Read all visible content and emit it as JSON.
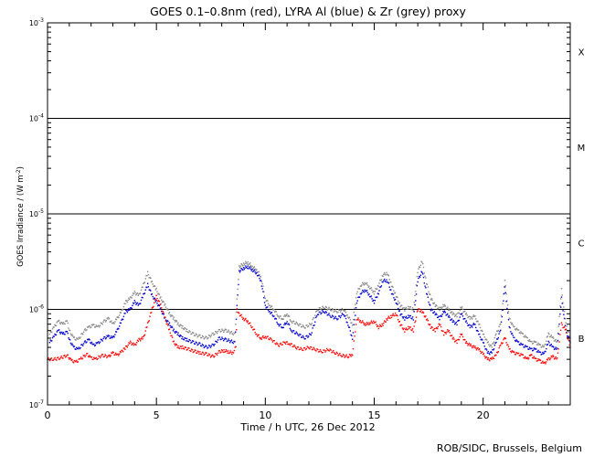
{
  "chart_data": {
    "type": "scatter",
    "title": "GOES 0.1–0.8nm (red), LYRA Al (blue) & Zr (grey) proxy",
    "xlabel": "Time / h UTC, 26 Dec 2012",
    "ylabel_main": "GOES Irradiance / (W m",
    "ylabel_exp": "-2",
    "ylabel_end": ")",
    "y_scale": "log",
    "xlim": [
      0,
      24
    ],
    "ylim": [
      1e-07,
      0.001
    ],
    "x_ticks": [
      0,
      5,
      10,
      15,
      20
    ],
    "x_tick_labels": [
      "0",
      "5",
      "10",
      "15",
      "20"
    ],
    "y_ticks": [
      1e-07,
      1e-06,
      1e-05,
      0.0001,
      0.001
    ],
    "y_tick_labels": [
      {
        "base": "10",
        "exp": "-7"
      },
      {
        "base": "10",
        "exp": "-6"
      },
      {
        "base": "10",
        "exp": "-5"
      },
      {
        "base": "10",
        "exp": "-4"
      },
      {
        "base": "10",
        "exp": "-3"
      }
    ],
    "threshold_lines": [
      1e-06,
      1e-05,
      0.0001
    ],
    "flare_classes": [
      {
        "label": "X",
        "y": 0.0005
      },
      {
        "label": "M",
        "y": 5e-05
      },
      {
        "label": "C",
        "y": 5e-06
      },
      {
        "label": "B",
        "y": 5e-07
      }
    ],
    "series": [
      {
        "name": "GOES 0.1–0.8nm",
        "color": "#ff0000",
        "x": [
          0,
          0.3,
          0.6,
          0.9,
          1.1,
          1.3,
          1.5,
          1.8,
          2.0,
          2.2,
          2.5,
          2.8,
          3.0,
          3.2,
          3.4,
          3.5,
          3.6,
          3.8,
          4.0,
          4.2,
          4.4,
          4.6,
          4.8,
          5.0,
          5.2,
          5.4,
          5.6,
          5.8,
          6.0,
          6.2,
          6.5,
          6.8,
          7.0,
          7.3,
          7.6,
          7.9,
          8.1,
          8.3,
          8.5,
          8.65,
          8.7,
          8.8,
          9.0,
          9.2,
          9.4,
          9.6,
          9.8,
          10.0,
          10.3,
          10.6,
          10.9,
          11.1,
          11.4,
          11.7,
          12.0,
          12.3,
          12.6,
          12.9,
          13.2,
          13.5,
          13.8,
          14.0,
          14.2,
          14.4,
          14.6,
          14.8,
          15.0,
          15.2,
          15.4,
          15.6,
          15.8,
          16.0,
          16.2,
          16.4,
          16.6,
          16.8,
          17.0,
          17.2,
          17.4,
          17.6,
          17.8,
          18.0,
          18.2,
          18.4,
          18.6,
          18.8,
          19.0,
          19.2,
          19.4,
          19.6,
          19.8,
          20.0,
          20.2,
          20.4,
          20.6,
          20.8,
          21.0,
          21.2,
          21.4,
          21.6,
          21.8,
          22.0,
          22.2,
          22.4,
          22.6,
          22.8,
          23.0,
          23.2,
          23.4,
          23.6,
          23.8,
          24.0
        ],
        "y": [
          3e-07,
          3e-07,
          3.1e-07,
          3.3e-07,
          2.9e-07,
          2.8e-07,
          3e-07,
          3.4e-07,
          3.1e-07,
          3e-07,
          3.3e-07,
          3.2e-07,
          3.5e-07,
          3.3e-07,
          3.6e-07,
          3.8e-07,
          4e-07,
          4.5e-07,
          4.2e-07,
          4.8e-07,
          5e-07,
          7e-07,
          1e-06,
          1.35e-06,
          1.1e-06,
          8e-07,
          6e-07,
          4.5e-07,
          4e-07,
          4e-07,
          3.8e-07,
          3.6e-07,
          3.5e-07,
          3.4e-07,
          3.2e-07,
          3.6e-07,
          3.7e-07,
          3.6e-07,
          3.5e-07,
          4e-07,
          1e-06,
          9e-07,
          8e-07,
          7.5e-07,
          6.5e-07,
          5.5e-07,
          5e-07,
          5.2e-07,
          4.8e-07,
          4.2e-07,
          4.5e-07,
          4.4e-07,
          4e-07,
          3.8e-07,
          4e-07,
          3.8e-07,
          3.6e-07,
          3.8e-07,
          3.5e-07,
          3.3e-07,
          3.2e-07,
          3.4e-07,
          8e-07,
          7.5e-07,
          7e-07,
          7.2e-07,
          7.5e-07,
          6.5e-07,
          7e-07,
          8e-07,
          8.5e-07,
          9e-07,
          7e-07,
          6e-07,
          6.5e-07,
          6e-07,
          1e-06,
          9.5e-07,
          8e-07,
          6.5e-07,
          6e-07,
          7e-07,
          5.5e-07,
          6e-07,
          5e-07,
          4.5e-07,
          5.5e-07,
          4.5e-07,
          4.2e-07,
          4e-07,
          3.8e-07,
          3.4e-07,
          3e-07,
          3e-07,
          3.3e-07,
          4.2e-07,
          5e-07,
          3.8e-07,
          3.5e-07,
          3.4e-07,
          3.3e-07,
          3e-07,
          3.3e-07,
          3e-07,
          2.9e-07,
          2.7e-07,
          3e-07,
          3.2e-07,
          3e-07,
          7e-07,
          6e-07,
          4e-07
        ]
      },
      {
        "name": "LYRA Al",
        "color": "#0000cc",
        "x": [
          0.1,
          0.3,
          0.5,
          0.7,
          0.9,
          1.0,
          1.2,
          1.4,
          1.7,
          1.9,
          2.1,
          2.3,
          2.6,
          2.8,
          3.0,
          3.2,
          3.4,
          3.6,
          3.8,
          4.0,
          4.2,
          4.4,
          4.6,
          4.8,
          5.0,
          5.2,
          5.4,
          5.6,
          5.8,
          6.0,
          6.2,
          6.4,
          6.7,
          7.0,
          7.3,
          7.6,
          7.9,
          8.2,
          8.6,
          8.8,
          9.0,
          9.2,
          9.4,
          9.6,
          9.8,
          10.0,
          10.2,
          10.4,
          10.6,
          10.8,
          11.0,
          11.2,
          11.5,
          11.8,
          12.1,
          12.4,
          12.7,
          13.0,
          13.3,
          13.6,
          13.8,
          14.0,
          14.2,
          14.4,
          14.6,
          14.8,
          15.0,
          15.2,
          15.4,
          15.6,
          15.8,
          16.0,
          16.2,
          16.4,
          16.6,
          16.8,
          17.0,
          17.2,
          17.4,
          17.6,
          17.8,
          18.0,
          18.2,
          18.4,
          18.6,
          18.8,
          19.0,
          19.2,
          19.4,
          19.6,
          19.8,
          20.0,
          20.2,
          20.4,
          20.6,
          20.8,
          21.0,
          21.2,
          21.4,
          21.6,
          21.8,
          22.0,
          22.2,
          22.4,
          22.6,
          22.8,
          23.0,
          23.2,
          23.4,
          23.6,
          23.8,
          24.0
        ],
        "y": [
          4.5e-07,
          5.2e-07,
          6e-07,
          5.5e-07,
          5.8e-07,
          4.8e-07,
          4e-07,
          3.8e-07,
          4.5e-07,
          4.8e-07,
          4.2e-07,
          4.4e-07,
          5e-07,
          5.2e-07,
          5e-07,
          6e-07,
          7.5e-07,
          9.5e-07,
          1e-06,
          1.2e-06,
          1.1e-06,
          1.4e-06,
          1.8e-06,
          1.4e-06,
          1.2e-06,
          1e-06,
          8e-07,
          7e-07,
          6e-07,
          5.5e-07,
          5e-07,
          4.8e-07,
          4.5e-07,
          4.3e-07,
          4e-07,
          4.2e-07,
          5e-07,
          4.8e-07,
          4.5e-07,
          2.5e-06,
          2.7e-06,
          2.8e-06,
          2.6e-06,
          2.4e-06,
          2e-06,
          1.1e-06,
          9.5e-07,
          8.5e-07,
          7e-07,
          6.5e-07,
          7.5e-07,
          6e-07,
          5.5e-07,
          5e-07,
          5.5e-07,
          9e-07,
          9.5e-07,
          8.5e-07,
          8e-07,
          9e-07,
          7e-07,
          5e-07,
          1.2e-06,
          1.5e-06,
          1.6e-06,
          1.4e-06,
          1.2e-06,
          1.5e-06,
          2e-06,
          2e-06,
          1.5e-06,
          1.2e-06,
          9e-07,
          8e-07,
          8.5e-07,
          8e-07,
          2e-06,
          2.5e-06,
          1.5e-06,
          1e-06,
          9e-07,
          8e-07,
          9.5e-07,
          8.5e-07,
          7.5e-07,
          7e-07,
          9e-07,
          7.5e-07,
          6.5e-07,
          7e-07,
          5.5e-07,
          4.5e-07,
          3.5e-07,
          3.5e-07,
          4.5e-07,
          6e-07,
          1.7e-06,
          6.5e-07,
          5e-07,
          4.5e-07,
          4.2e-07,
          4e-07,
          3.8e-07,
          3.8e-07,
          3.5e-07,
          3.4e-07,
          4.5e-07,
          4e-07,
          3.8e-07,
          1.3e-06,
          6e-07,
          4.5e-07
        ]
      },
      {
        "name": "Zr",
        "color": "#888888",
        "x": [
          0.1,
          0.3,
          0.5,
          0.7,
          0.9,
          1.0,
          1.2,
          1.4,
          1.7,
          1.9,
          2.1,
          2.3,
          2.6,
          2.8,
          3.0,
          3.2,
          3.4,
          3.6,
          3.8,
          4.0,
          4.2,
          4.4,
          4.6,
          4.8,
          5.0,
          5.2,
          5.4,
          5.6,
          5.8,
          6.0,
          6.2,
          6.4,
          6.7,
          7.0,
          7.3,
          7.6,
          7.9,
          8.2,
          8.6,
          8.8,
          9.0,
          9.2,
          9.4,
          9.6,
          9.8,
          10.0,
          10.2,
          10.4,
          10.6,
          10.8,
          11.0,
          11.2,
          11.5,
          11.8,
          12.1,
          12.4,
          12.7,
          13.0,
          13.3,
          13.6,
          13.8,
          14.0,
          14.2,
          14.4,
          14.6,
          14.8,
          15.0,
          15.2,
          15.4,
          15.6,
          15.8,
          16.0,
          16.2,
          16.4,
          16.6,
          16.8,
          17.0,
          17.2,
          17.4,
          17.6,
          17.8,
          18.0,
          18.2,
          18.4,
          18.6,
          18.8,
          19.0,
          19.2,
          19.4,
          19.6,
          19.8,
          20.0,
          20.2,
          20.4,
          20.6,
          20.8,
          21.0,
          21.2,
          21.4,
          21.6,
          21.8,
          22.0,
          22.2,
          22.4,
          22.6,
          22.8,
          23.0,
          23.2,
          23.4,
          23.6,
          23.8,
          24.0
        ],
        "y": [
          5.5e-07,
          6.5e-07,
          7.5e-07,
          7e-07,
          7.5e-07,
          6e-07,
          5e-07,
          4.8e-07,
          6e-07,
          6.5e-07,
          6.8e-07,
          6.5e-07,
          7.5e-07,
          8e-07,
          7e-07,
          8e-07,
          9.5e-07,
          1.2e-06,
          1.3e-06,
          1.5e-06,
          1.4e-06,
          1.8e-06,
          2.4e-06,
          1.9e-06,
          1.6e-06,
          1.3e-06,
          1.1e-06,
          9e-07,
          8e-07,
          7e-07,
          6.5e-07,
          6e-07,
          5.5e-07,
          5.2e-07,
          5e-07,
          5.5e-07,
          6e-07,
          6e-07,
          5.5e-07,
          2.8e-06,
          3e-06,
          3.1e-06,
          2.8e-06,
          2.6e-06,
          2.2e-06,
          1.3e-06,
          1.1e-06,
          1e-06,
          8.5e-07,
          8e-07,
          9e-07,
          7.5e-07,
          7e-07,
          6.5e-07,
          7e-07,
          1e-06,
          1.05e-06,
          1e-06,
          9.5e-07,
          1e-06,
          8.5e-07,
          7e-07,
          1.5e-06,
          1.8e-06,
          1.9e-06,
          1.7e-06,
          1.5e-06,
          1.8e-06,
          2.3e-06,
          2.4e-06,
          1.8e-06,
          1.4e-06,
          1.1e-06,
          1e-06,
          1.05e-06,
          1e-06,
          2.5e-06,
          3.2e-06,
          1.9e-06,
          1.3e-06,
          1.1e-06,
          1e-06,
          1.1e-06,
          1e-06,
          9e-07,
          8.5e-07,
          1.05e-06,
          9e-07,
          8e-07,
          8.5e-07,
          7e-07,
          5.5e-07,
          4.5e-07,
          4e-07,
          5.5e-07,
          7e-07,
          2e-06,
          8e-07,
          6.5e-07,
          6e-07,
          5.5e-07,
          5e-07,
          4.5e-07,
          4.5e-07,
          4.2e-07,
          4e-07,
          5.5e-07,
          5e-07,
          4.5e-07,
          1.6e-06,
          7e-07,
          5e-07
        ]
      }
    ],
    "credit": "ROB/SIDC, Brussels, Belgium"
  }
}
